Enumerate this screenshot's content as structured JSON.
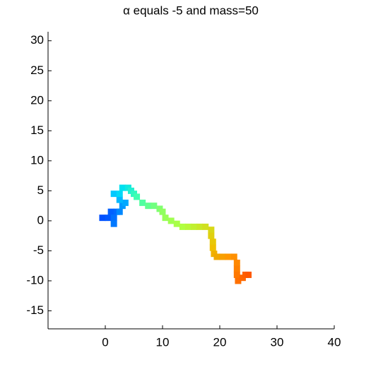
{
  "chart_data": {
    "type": "scatter",
    "title": "α equals -5 and mass=50",
    "xlim": [
      -10,
      40
    ],
    "xticks": [
      0,
      10,
      20,
      30,
      40
    ],
    "ylim": [
      -18,
      31.5
    ],
    "yticks": [
      -15,
      -10,
      -5,
      0,
      5,
      10,
      15,
      20,
      25,
      30
    ],
    "marker": "square",
    "series": [
      {
        "x": [
          -0.5,
          0.5,
          1,
          2,
          1.5,
          1.5,
          2.5,
          3,
          3.5,
          2.5,
          1.5,
          2.5,
          3,
          4,
          4.5,
          5,
          5.5,
          6.5,
          7.5,
          8.5,
          9.5,
          10,
          10.5,
          11.5,
          12.5,
          13.5,
          14.5,
          15.5,
          16.5,
          17.5,
          18.5,
          18.5,
          18.8,
          18.8,
          19,
          19.5,
          20.5,
          21.5,
          22.5,
          23,
          23,
          23,
          23.2,
          24,
          24.5,
          25
        ],
        "values": [
          0.5,
          0.5,
          1.5,
          1.5,
          0.5,
          -0.5,
          1.5,
          2.5,
          3,
          3.5,
          4.5,
          4.5,
          5.5,
          5.5,
          5,
          4.5,
          4,
          3,
          2.5,
          2.5,
          2,
          1.5,
          0.5,
          0,
          -0.5,
          -1,
          -1,
          -1,
          -1,
          -1,
          -1.5,
          -2.5,
          -3.5,
          -4.5,
          -5.5,
          -6,
          -6,
          -6,
          -6,
          -7,
          -8,
          -9,
          -10,
          -9.5,
          -9,
          -9
        ],
        "colors": [
          "#0050ff",
          "#0058ff",
          "#0060ff",
          "#0068ff",
          "#0070ff",
          "#0078ff",
          "#0088ff",
          "#0098ff",
          "#00a8ff",
          "#00b8ff",
          "#00c8ff",
          "#00d8f8",
          "#00e0f0",
          "#10e8e0",
          "#20f0d0",
          "#30f8c0",
          "#40ffb0",
          "#50ffa0",
          "#60ff90",
          "#70ff80",
          "#80ff70",
          "#90ff60",
          "#98ff58",
          "#a0ff50",
          "#a8ff48",
          "#b0ff40",
          "#b8f838",
          "#c0f030",
          "#c8e828",
          "#d0e020",
          "#d8d818",
          "#e0d010",
          "#e8c808",
          "#f0c000",
          "#f0b000",
          "#f0a800",
          "#f8a000",
          "#ff9800",
          "#ff9000",
          "#ff8800",
          "#ff8000",
          "#ff7800",
          "#ff7000",
          "#ff6800",
          "#ff6000",
          "#ff5800"
        ]
      }
    ]
  }
}
